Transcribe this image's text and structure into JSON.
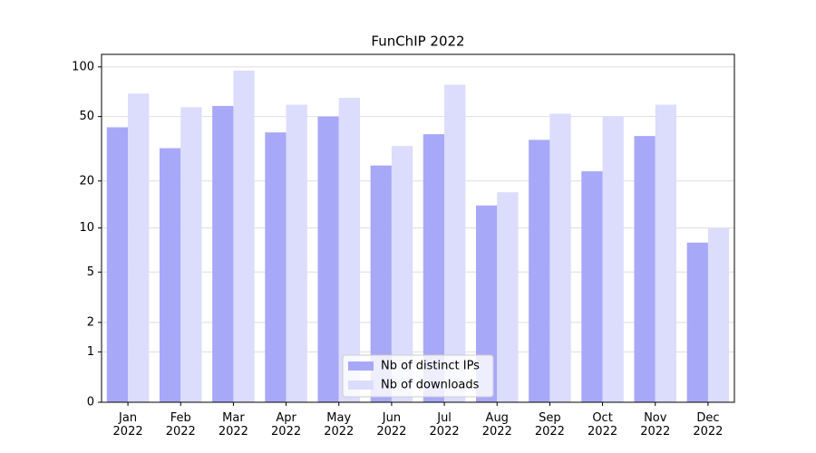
{
  "chart_data": {
    "type": "bar",
    "title": "FunChIP 2022",
    "categories": [
      "Jan\n2022",
      "Feb\n2022",
      "Mar\n2022",
      "Apr\n2022",
      "May\n2022",
      "Jun\n2022",
      "Jul\n2022",
      "Aug\n2022",
      "Sep\n2022",
      "Oct\n2022",
      "Nov\n2022",
      "Dec\n2022"
    ],
    "series": [
      {
        "name": "Nb of distinct IPs",
        "color": "#a8a8f8",
        "values": [
          43,
          32,
          58,
          40,
          50,
          25,
          39,
          14,
          36,
          23,
          38,
          8
        ]
      },
      {
        "name": "Nb of downloads",
        "color": "#dcdcfc",
        "values": [
          69,
          57,
          95,
          59,
          65,
          33,
          78,
          17,
          52,
          50,
          59,
          10
        ]
      }
    ],
    "yscale": "log1p",
    "ylim": [
      0,
      119
    ],
    "yticks": [
      0,
      1,
      2,
      5,
      10,
      20,
      50,
      100
    ],
    "grid": true,
    "legend": "lower center"
  }
}
